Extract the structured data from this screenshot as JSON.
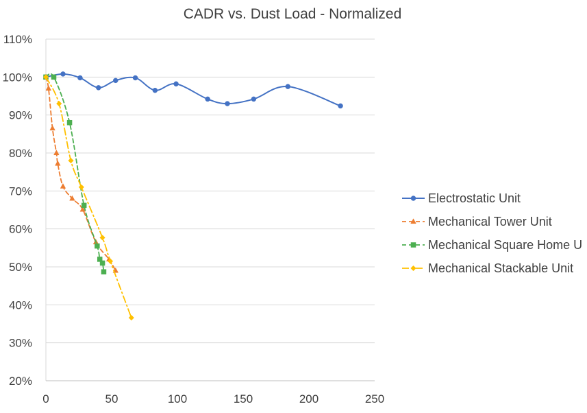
{
  "chart_data": {
    "type": "line",
    "title": "CADR vs. Dust Load - Normalized",
    "xlabel": "",
    "ylabel": "",
    "xlim": [
      0,
      250
    ],
    "ylim": [
      0.2,
      1.1
    ],
    "x_ticks": [
      0,
      50,
      100,
      150,
      200,
      250
    ],
    "x_tick_labels": [
      "0",
      "50",
      "100",
      "150",
      "200",
      "250"
    ],
    "y_ticks": [
      0.2,
      0.3,
      0.4,
      0.5,
      0.6,
      0.7,
      0.8,
      0.9,
      1.0,
      1.1
    ],
    "y_tick_labels": [
      "20%",
      "30%",
      "40%",
      "50%",
      "60%",
      "70%",
      "80%",
      "90%",
      "100%",
      "110%"
    ],
    "grid": true,
    "legend_position": "right",
    "series": [
      {
        "name": "Electrostatic Unit",
        "legend_label": "Electrostatic Unit",
        "color": "#4472C4",
        "marker": "circle",
        "line_style": "solid",
        "x": [
          0,
          13,
          26,
          40,
          53,
          68,
          83,
          99,
          123,
          138,
          158,
          184,
          224
        ],
        "y": [
          1.0,
          1.008,
          0.998,
          0.972,
          0.991,
          0.998,
          0.965,
          0.982,
          0.942,
          0.93,
          0.942,
          0.975,
          0.924
        ]
      },
      {
        "name": "Mechanical Tower Unit",
        "legend_label": "Mechanical Tower Unit",
        "color": "#ED7D31",
        "marker": "triangle",
        "line_style": "dash",
        "x": [
          0,
          2,
          5,
          8,
          9,
          13,
          20,
          28,
          38,
          48,
          53
        ],
        "y": [
          1.0,
          0.97,
          0.865,
          0.8,
          0.772,
          0.712,
          0.68,
          0.651,
          0.565,
          0.52,
          0.49
        ]
      },
      {
        "name": "Mechanical Square Home Unit",
        "legend_label": "Mechanical Square Home U",
        "color": "#4CAF50",
        "marker": "square",
        "line_style": "dash",
        "x": [
          0,
          6,
          18,
          29,
          39,
          41,
          43,
          44
        ],
        "y": [
          1.0,
          1.0,
          0.88,
          0.662,
          0.555,
          0.52,
          0.51,
          0.487
        ]
      },
      {
        "name": "Mechanical Stackable Unit",
        "legend_label": "Mechanical Stackable Unit",
        "color": "#FFC000",
        "marker": "diamond",
        "line_style": "dashdot",
        "x": [
          0,
          10,
          19,
          27,
          43,
          49,
          65
        ],
        "y": [
          1.0,
          0.93,
          0.78,
          0.71,
          0.577,
          0.515,
          0.366
        ]
      }
    ]
  }
}
